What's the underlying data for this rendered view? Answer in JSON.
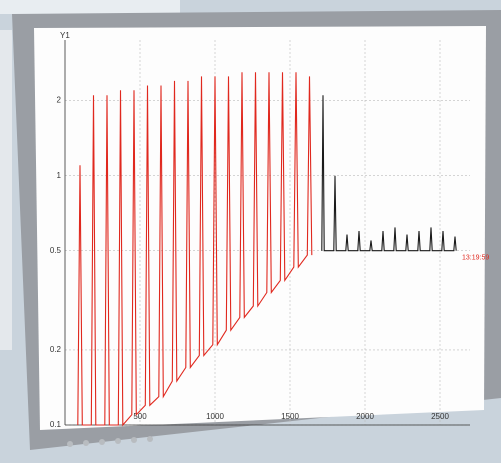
{
  "chart_data": {
    "type": "line",
    "y_label": "Y1",
    "annotation": "13:19:59",
    "log_y": true,
    "grid": true,
    "xlim": [
      0,
      2700
    ],
    "ylim": [
      0.1,
      3.5
    ],
    "xticks": [
      500,
      1000,
      1500,
      2000,
      2500
    ],
    "yticks": [
      0.1,
      0.2,
      0.5,
      1,
      2
    ],
    "series": [
      {
        "color": "#e0281e",
        "x": [
          85,
          100,
          115,
          175,
          190,
          205,
          265,
          280,
          295,
          355,
          370,
          385,
          445,
          460,
          475,
          535,
          550,
          565,
          625,
          640,
          655,
          715,
          730,
          745,
          805,
          820,
          835,
          895,
          910,
          925,
          985,
          1000,
          1015,
          1075,
          1090,
          1105,
          1165,
          1180,
          1195,
          1255,
          1270,
          1285,
          1345,
          1360,
          1375,
          1435,
          1450,
          1465,
          1525,
          1540,
          1555,
          1615,
          1630,
          1645
        ],
        "values": [
          0.1,
          1.1,
          0.1,
          0.1,
          2.1,
          0.1,
          0.1,
          2.1,
          0.1,
          0.1,
          2.2,
          0.1,
          0.11,
          2.2,
          0.11,
          0.12,
          2.3,
          0.12,
          0.13,
          2.3,
          0.13,
          0.15,
          2.4,
          0.15,
          0.17,
          2.4,
          0.17,
          0.19,
          2.5,
          0.19,
          0.21,
          2.5,
          0.21,
          0.24,
          2.5,
          0.24,
          0.27,
          2.6,
          0.27,
          0.3,
          2.6,
          0.3,
          0.34,
          2.6,
          0.34,
          0.38,
          2.6,
          0.38,
          0.43,
          2.6,
          0.43,
          0.48,
          2.5,
          0.48
        ]
      },
      {
        "color": "#1a1a1a",
        "x": [
          1712,
          1720,
          1728,
          1792,
          1800,
          1808,
          1872,
          1880,
          1888,
          1952,
          1960,
          1968,
          2032,
          2040,
          2048,
          2112,
          2120,
          2128,
          2192,
          2200,
          2208,
          2272,
          2280,
          2288,
          2352,
          2360,
          2368,
          2432,
          2440,
          2448,
          2512,
          2520,
          2528,
          2592,
          2600,
          2608
        ],
        "values": [
          0.5,
          2.1,
          0.5,
          0.5,
          1.0,
          0.5,
          0.5,
          0.58,
          0.5,
          0.5,
          0.6,
          0.5,
          0.5,
          0.55,
          0.5,
          0.5,
          0.6,
          0.5,
          0.5,
          0.62,
          0.5,
          0.5,
          0.58,
          0.5,
          0.5,
          0.6,
          0.5,
          0.5,
          0.62,
          0.5,
          0.5,
          0.6,
          0.5,
          0.5,
          0.57,
          0.5
        ]
      }
    ]
  }
}
